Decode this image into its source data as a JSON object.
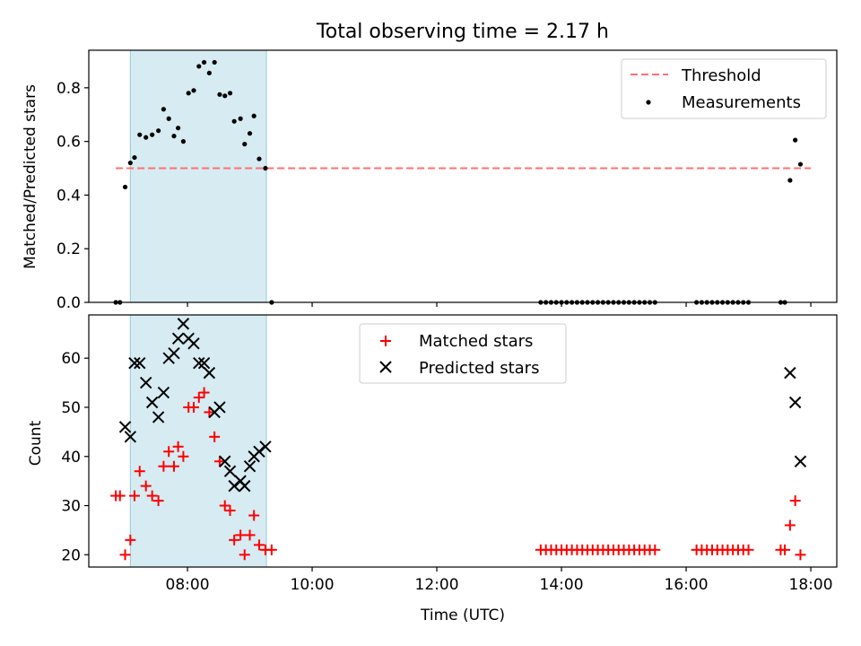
{
  "chart_data": [
    {
      "type": "scatter",
      "title": "Total observing time = 2.17 h",
      "ylabel": "Matched/Predicted stars",
      "xlabel": "",
      "xlim": [
        "06:25",
        "18:25"
      ],
      "ylim": [
        0,
        0.94
      ],
      "grid": false,
      "legend_position": "top-right",
      "x_ticks": [
        "08:00",
        "10:00",
        "12:00",
        "14:00",
        "16:00",
        "18:00"
      ],
      "y_ticks": [
        "0.0",
        "0.2",
        "0.4",
        "0.6",
        "0.8"
      ],
      "shaded_region": {
        "x_start": "07:05",
        "x_end": "09:16",
        "color": "#add8e6"
      },
      "series": [
        {
          "name": "Threshold",
          "kind": "line",
          "style": "dashed",
          "color": "#ff7070",
          "points": [
            [
              "06:51",
              0.5
            ],
            [
              "18:00",
              0.5
            ]
          ]
        },
        {
          "name": "Measurements",
          "kind": "scatter",
          "color": "#000000",
          "points": [
            [
              "06:51",
              0.0
            ],
            [
              "06:55",
              0.0
            ],
            [
              "07:00",
              0.43
            ],
            [
              "07:05",
              0.52
            ],
            [
              "07:09",
              0.54
            ],
            [
              "07:14",
              0.625
            ],
            [
              "07:20",
              0.615
            ],
            [
              "07:26",
              0.625
            ],
            [
              "07:32",
              0.64
            ],
            [
              "07:37",
              0.72
            ],
            [
              "07:42",
              0.685
            ],
            [
              "07:47",
              0.62
            ],
            [
              "07:51",
              0.65
            ],
            [
              "07:56",
              0.6
            ],
            [
              "08:01",
              0.78
            ],
            [
              "08:06",
              0.79
            ],
            [
              "08:11",
              0.88
            ],
            [
              "08:16",
              0.895
            ],
            [
              "08:21",
              0.855
            ],
            [
              "08:26",
              0.895
            ],
            [
              "08:31",
              0.775
            ],
            [
              "08:36",
              0.77
            ],
            [
              "08:41",
              0.78
            ],
            [
              "08:45",
              0.675
            ],
            [
              "08:51",
              0.685
            ],
            [
              "08:55",
              0.59
            ],
            [
              "09:00",
              0.63
            ],
            [
              "09:04",
              0.695
            ],
            [
              "09:09",
              0.535
            ],
            [
              "09:15",
              0.5
            ],
            [
              "09:21",
              0.0
            ],
            [
              "13:40",
              0.0
            ],
            [
              "13:45",
              0.0
            ],
            [
              "13:50",
              0.0
            ],
            [
              "13:55",
              0.0
            ],
            [
              "14:00",
              0.0
            ],
            [
              "14:05",
              0.0
            ],
            [
              "14:10",
              0.0
            ],
            [
              "14:15",
              0.0
            ],
            [
              "14:20",
              0.0
            ],
            [
              "14:25",
              0.0
            ],
            [
              "14:30",
              0.0
            ],
            [
              "14:35",
              0.0
            ],
            [
              "14:40",
              0.0
            ],
            [
              "14:45",
              0.0
            ],
            [
              "14:50",
              0.0
            ],
            [
              "14:55",
              0.0
            ],
            [
              "15:00",
              0.0
            ],
            [
              "15:05",
              0.0
            ],
            [
              "15:10",
              0.0
            ],
            [
              "15:15",
              0.0
            ],
            [
              "15:20",
              0.0
            ],
            [
              "15:25",
              0.0
            ],
            [
              "15:30",
              0.0
            ],
            [
              "16:10",
              0.0
            ],
            [
              "16:15",
              0.0
            ],
            [
              "16:20",
              0.0
            ],
            [
              "16:25",
              0.0
            ],
            [
              "16:30",
              0.0
            ],
            [
              "16:35",
              0.0
            ],
            [
              "16:40",
              0.0
            ],
            [
              "16:45",
              0.0
            ],
            [
              "16:50",
              0.0
            ],
            [
              "16:55",
              0.0
            ],
            [
              "17:00",
              0.0
            ],
            [
              "17:31",
              0.0
            ],
            [
              "17:35",
              0.0
            ],
            [
              "17:40",
              0.455
            ],
            [
              "17:45",
              0.605
            ],
            [
              "17:50",
              0.515
            ]
          ]
        }
      ]
    },
    {
      "type": "scatter",
      "title": "",
      "ylabel": "Count",
      "xlabel": "Time (UTC)",
      "xlim": [
        "06:25",
        "18:25"
      ],
      "ylim": [
        17.5,
        68.8
      ],
      "grid": false,
      "legend_position": "top-center",
      "x_ticks": [
        "08:00",
        "10:00",
        "12:00",
        "14:00",
        "16:00",
        "18:00"
      ],
      "y_ticks": [
        "20",
        "30",
        "40",
        "50",
        "60"
      ],
      "shaded_region": {
        "x_start": "07:05",
        "x_end": "09:16",
        "color": "#add8e6"
      },
      "series": [
        {
          "name": "Matched stars",
          "kind": "scatter",
          "marker": "plus",
          "color": "#ff0000",
          "points": [
            [
              "06:51",
              32
            ],
            [
              "06:55",
              32
            ],
            [
              "07:00",
              20
            ],
            [
              "07:05",
              23
            ],
            [
              "07:09",
              32
            ],
            [
              "07:14",
              37
            ],
            [
              "07:20",
              34
            ],
            [
              "07:26",
              32
            ],
            [
              "07:32",
              31
            ],
            [
              "07:37",
              38
            ],
            [
              "07:42",
              41
            ],
            [
              "07:47",
              38
            ],
            [
              "07:51",
              42
            ],
            [
              "07:56",
              40
            ],
            [
              "08:01",
              50
            ],
            [
              "08:06",
              50
            ],
            [
              "08:11",
              52
            ],
            [
              "08:16",
              53
            ],
            [
              "08:21",
              49
            ],
            [
              "08:26",
              44
            ],
            [
              "08:31",
              39
            ],
            [
              "08:36",
              30
            ],
            [
              "08:41",
              29
            ],
            [
              "08:45",
              23
            ],
            [
              "08:51",
              24
            ],
            [
              "08:55",
              20
            ],
            [
              "09:00",
              24
            ],
            [
              "09:04",
              28
            ],
            [
              "09:09",
              22
            ],
            [
              "09:15",
              21
            ],
            [
              "09:21",
              21
            ],
            [
              "13:40",
              21
            ],
            [
              "13:45",
              21
            ],
            [
              "13:50",
              21
            ],
            [
              "13:55",
              21
            ],
            [
              "14:00",
              21
            ],
            [
              "14:05",
              21
            ],
            [
              "14:10",
              21
            ],
            [
              "14:15",
              21
            ],
            [
              "14:20",
              21
            ],
            [
              "14:25",
              21
            ],
            [
              "14:30",
              21
            ],
            [
              "14:35",
              21
            ],
            [
              "14:40",
              21
            ],
            [
              "14:45",
              21
            ],
            [
              "14:50",
              21
            ],
            [
              "14:55",
              21
            ],
            [
              "15:00",
              21
            ],
            [
              "15:05",
              21
            ],
            [
              "15:10",
              21
            ],
            [
              "15:15",
              21
            ],
            [
              "15:20",
              21
            ],
            [
              "15:25",
              21
            ],
            [
              "15:30",
              21
            ],
            [
              "16:10",
              21
            ],
            [
              "16:15",
              21
            ],
            [
              "16:20",
              21
            ],
            [
              "16:25",
              21
            ],
            [
              "16:30",
              21
            ],
            [
              "16:35",
              21
            ],
            [
              "16:40",
              21
            ],
            [
              "16:45",
              21
            ],
            [
              "16:50",
              21
            ],
            [
              "16:55",
              21
            ],
            [
              "17:00",
              21
            ],
            [
              "17:31",
              21
            ],
            [
              "17:35",
              21
            ],
            [
              "17:40",
              26
            ],
            [
              "17:45",
              31
            ],
            [
              "17:50",
              20
            ]
          ]
        },
        {
          "name": "Predicted stars",
          "kind": "scatter",
          "marker": "x",
          "color": "#000000",
          "points": [
            [
              "07:00",
              46
            ],
            [
              "07:05",
              44
            ],
            [
              "07:09",
              59
            ],
            [
              "07:14",
              59
            ],
            [
              "07:20",
              55
            ],
            [
              "07:26",
              51
            ],
            [
              "07:32",
              48
            ],
            [
              "07:37",
              53
            ],
            [
              "07:42",
              60
            ],
            [
              "07:47",
              61
            ],
            [
              "07:51",
              64
            ],
            [
              "07:56",
              67
            ],
            [
              "08:01",
              64
            ],
            [
              "08:06",
              63
            ],
            [
              "08:11",
              59
            ],
            [
              "08:16",
              59
            ],
            [
              "08:21",
              57
            ],
            [
              "08:26",
              49
            ],
            [
              "08:31",
              50
            ],
            [
              "08:36",
              39
            ],
            [
              "08:41",
              37
            ],
            [
              "08:45",
              34
            ],
            [
              "08:51",
              35
            ],
            [
              "08:55",
              34
            ],
            [
              "09:00",
              38
            ],
            [
              "09:04",
              40
            ],
            [
              "09:09",
              41
            ],
            [
              "09:15",
              42
            ],
            [
              "17:40",
              57
            ],
            [
              "17:45",
              51
            ],
            [
              "17:50",
              39
            ]
          ]
        }
      ]
    }
  ]
}
